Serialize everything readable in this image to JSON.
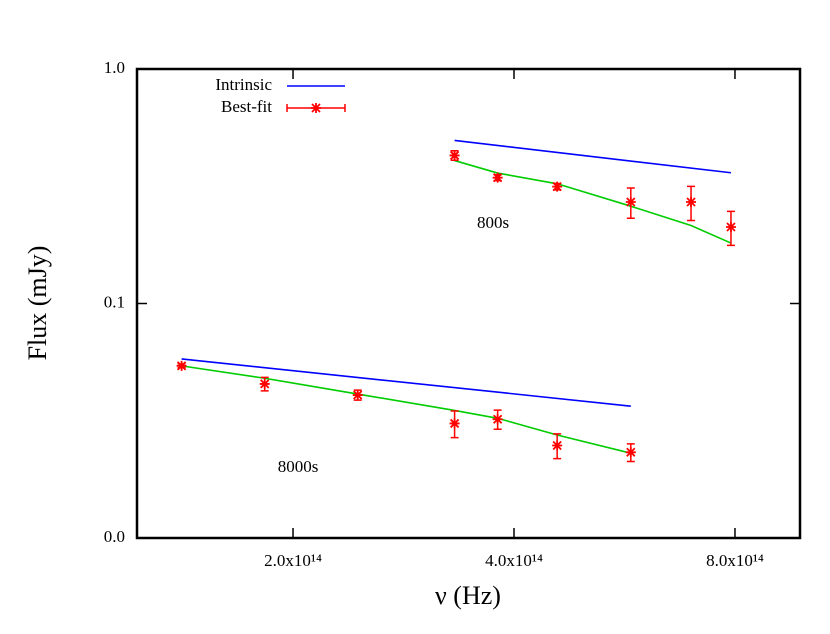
{
  "chart_data": {
    "type": "line",
    "x_label": "ν (Hz)",
    "y_label": "Flux (mJy)",
    "xlog": true,
    "ylog": true,
    "xlim": [
      122600000000000.0,
      981000000000000.0
    ],
    "ylim": [
      0.01,
      1
    ],
    "xticks": [
      {
        "value": 200000000000000.0,
        "label": "2.0x10¹⁴"
      },
      {
        "value": 400000000000000.0,
        "label": "4.0x10¹⁴"
      },
      {
        "value": 800000000000000.0,
        "label": "8.0x10¹⁴"
      }
    ],
    "yticks": [
      {
        "value": 1,
        "label": "1.0"
      },
      0.1,
      {
        "value": 0.01,
        "label": "0.0"
      }
    ],
    "legend": [
      {
        "name": "Intrinsic",
        "color": "#0000ff"
      },
      {
        "name": "Best-fit",
        "color": "#ff0000"
      }
    ],
    "fit_color": "#00cc00",
    "groups": [
      {
        "label": "800s",
        "intrinsic": {
          "x": [
            332000000000000.0,
            790000000000000.0
          ],
          "values": [
            0.496,
            0.361
          ]
        },
        "fit": {
          "x": [
            332000000000000.0,
            380000000000000.0,
            458000000000000.0,
            577000000000000.0,
            697000000000000.0,
            790000000000000.0
          ],
          "values": [
            0.407,
            0.36,
            0.324,
            0.26,
            0.215,
            0.181
          ]
        },
        "points": {
          "x": [
            332000000000000.0,
            380000000000000.0,
            458000000000000.0,
            577000000000000.0,
            697000000000000.0,
            790000000000000.0
          ],
          "values": [
            0.428,
            0.344,
            0.315,
            0.271,
            0.271,
            0.212
          ],
          "errors": [
            0.02,
            0.01,
            0.01,
            0.04,
            0.045,
            0.035
          ]
        }
      },
      {
        "label": "8000s",
        "intrinsic": {
          "x": [
            141000000000000.0,
            577000000000000.0
          ],
          "values": [
            0.058,
            0.0365
          ]
        },
        "fit": {
          "x": [
            141000000000000.0,
            183000000000000.0,
            245000000000000.0,
            332000000000000.0,
            380000000000000.0,
            458000000000000.0,
            577000000000000.0
          ],
          "values": [
            0.0542,
            0.048,
            0.0411,
            0.035,
            0.0324,
            0.0275,
            0.023
          ]
        },
        "points": {
          "x": [
            141000000000000.0,
            183000000000000.0,
            245000000000000.0,
            332000000000000.0,
            380000000000000.0,
            458000000000000.0,
            577000000000000.0
          ],
          "values": [
            0.0542,
            0.0454,
            0.0407,
            0.0308,
            0.0321,
            0.0248,
            0.0232
          ],
          "errors": [
            0.001,
            0.003,
            0.002,
            0.004,
            0.003,
            0.003,
            0.002
          ]
        }
      }
    ]
  }
}
